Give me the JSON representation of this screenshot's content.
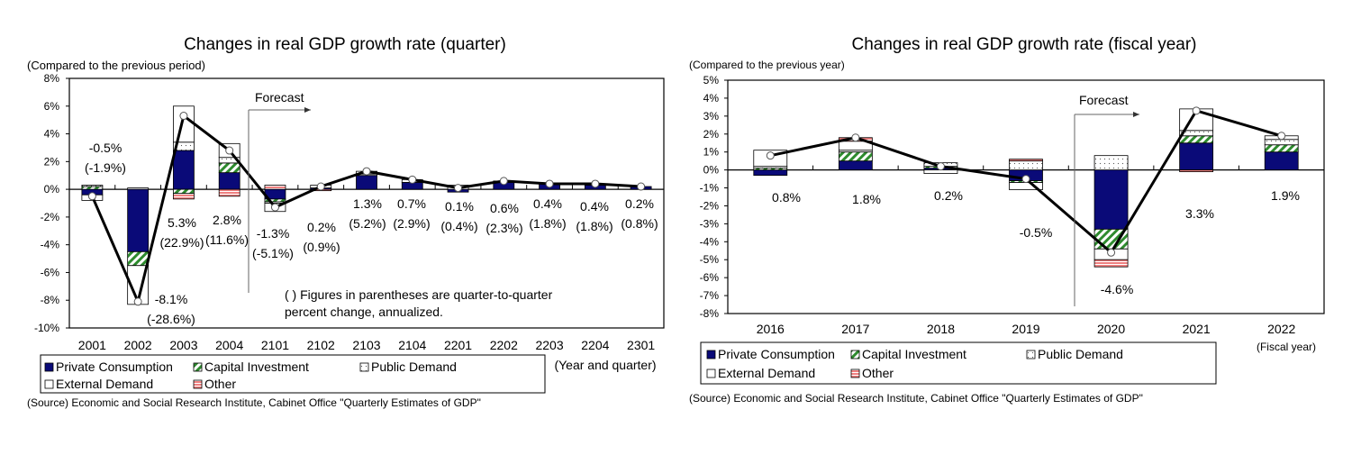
{
  "colors": {
    "private_consumption": "#0a0a78",
    "capital_investment": "#2e8b2e",
    "public_demand": "#ffffff",
    "external_demand": "#ffffff",
    "other": "#f08080",
    "line": "#000000"
  },
  "legend": [
    "Private Consumption",
    "Capital Investment",
    "Public Demand",
    "External Demand",
    "Other"
  ],
  "chart_data": [
    {
      "type": "bar",
      "stacked": true,
      "title": "Changes in real GDP growth rate (quarter)",
      "subtitle": "(Compared to the previous period)",
      "xlabel": "(Year and quarter)",
      "ylim": [
        -10,
        8
      ],
      "yticks": [
        "8%",
        "6%",
        "4%",
        "2%",
        "0%",
        "-2%",
        "-4%",
        "-6%",
        "-8%",
        "-10%"
      ],
      "categories": [
        "2001",
        "2002",
        "2003",
        "2004",
        "2101",
        "2102",
        "2103",
        "2104",
        "2201",
        "2202",
        "2203",
        "2204",
        "2301"
      ],
      "forecast_label": "Forecast",
      "forecast_from": "2101",
      "note": [
        "( ) Figures in parentheses are quarter-to-quarter",
        "percent change, annualized."
      ],
      "series": [
        {
          "name": "Private Consumption",
          "values": [
            -0.4,
            -4.5,
            2.8,
            1.2,
            -0.7,
            0.1,
            1.0,
            0.5,
            -0.2,
            0.5,
            0.4,
            0.3,
            0.2
          ]
        },
        {
          "name": "Capital Investment",
          "values": [
            0.2,
            -1.0,
            -0.3,
            0.7,
            -0.2,
            0,
            0,
            0,
            0,
            0,
            0,
            0,
            0
          ]
        },
        {
          "name": "Public Demand",
          "values": [
            0.1,
            0.1,
            0.6,
            0.4,
            -0.1,
            0,
            0.1,
            0,
            0,
            0.1,
            0,
            0.1,
            0
          ]
        },
        {
          "name": "External Demand",
          "values": [
            -0.4,
            -2.8,
            2.6,
            1.0,
            -0.6,
            0.2,
            0.2,
            0.2,
            0.3,
            0,
            0,
            0,
            0
          ]
        },
        {
          "name": "Other",
          "values": [
            0,
            0,
            -0.4,
            -0.5,
            0.3,
            -0.1,
            0,
            0,
            0,
            0,
            0,
            0,
            0
          ]
        }
      ],
      "total": [
        -0.5,
        -8.1,
        5.3,
        2.8,
        -1.3,
        0.2,
        1.3,
        0.7,
        0.1,
        0.6,
        0.4,
        0.4,
        0.2
      ],
      "data_labels": [
        [
          "-0.5%",
          "(-1.9%)"
        ],
        [
          "-8.1%",
          "(-28.6%)"
        ],
        [
          "5.3%",
          "(22.9%)"
        ],
        [
          "2.8%",
          "(11.6%)"
        ],
        [
          "-1.3%",
          "(-5.1%)"
        ],
        [
          "0.2%",
          "(0.9%)"
        ],
        [
          "1.3%",
          "(5.2%)"
        ],
        [
          "0.7%",
          "(2.9%)"
        ],
        [
          "0.1%",
          "(0.4%)"
        ],
        [
          "0.6%",
          "(2.3%)"
        ],
        [
          "0.4%",
          "(1.8%)"
        ],
        [
          "0.4%",
          "(1.8%)"
        ],
        [
          "0.2%",
          "(0.8%)"
        ]
      ],
      "source": "(Source) Economic and Social Research Institute, Cabinet Office \"Quarterly Estimates of GDP\""
    },
    {
      "type": "bar",
      "stacked": true,
      "title": "Changes in real GDP growth rate (fiscal year)",
      "subtitle": "(Compared to the previous year)",
      "xlabel": "(Fiscal year)",
      "ylim": [
        -8,
        5
      ],
      "yticks": [
        "5%",
        "4%",
        "3%",
        "2%",
        "1%",
        "0%",
        "-1%",
        "-2%",
        "-3%",
        "-4%",
        "-5%",
        "-6%",
        "-7%",
        "-8%"
      ],
      "categories": [
        "2016",
        "2017",
        "2018",
        "2019",
        "2020",
        "2021",
        "2022"
      ],
      "forecast_label": "Forecast",
      "forecast_from": "2020",
      "series": [
        {
          "name": "Private Consumption",
          "values": [
            -0.3,
            0.5,
            0.1,
            -0.6,
            -3.3,
            1.5,
            1.0
          ]
        },
        {
          "name": "Capital Investment",
          "values": [
            0.1,
            0.5,
            0.1,
            -0.1,
            -1.1,
            0.4,
            0.4
          ]
        },
        {
          "name": "Public Demand",
          "values": [
            0.1,
            0.1,
            0.2,
            0.5,
            0.8,
            0.3,
            0.3
          ]
        },
        {
          "name": "External Demand",
          "values": [
            0.9,
            0.5,
            -0.2,
            -0.4,
            -0.6,
            1.2,
            0.2
          ]
        },
        {
          "name": "Other",
          "values": [
            0,
            0.2,
            0,
            0.1,
            -0.4,
            -0.1,
            0
          ]
        }
      ],
      "total": [
        0.8,
        1.8,
        0.2,
        -0.5,
        -4.6,
        3.3,
        1.9
      ],
      "data_labels": [
        [
          "0.8%"
        ],
        [
          "1.8%"
        ],
        [
          "0.2%"
        ],
        [
          "-0.5%"
        ],
        [
          "-4.6%"
        ],
        [
          "3.3%"
        ],
        [
          "1.9%"
        ]
      ],
      "source": "(Source) Economic and Social Research Institute,  Cabinet Office \"Quarterly Estimates of GDP\""
    }
  ]
}
